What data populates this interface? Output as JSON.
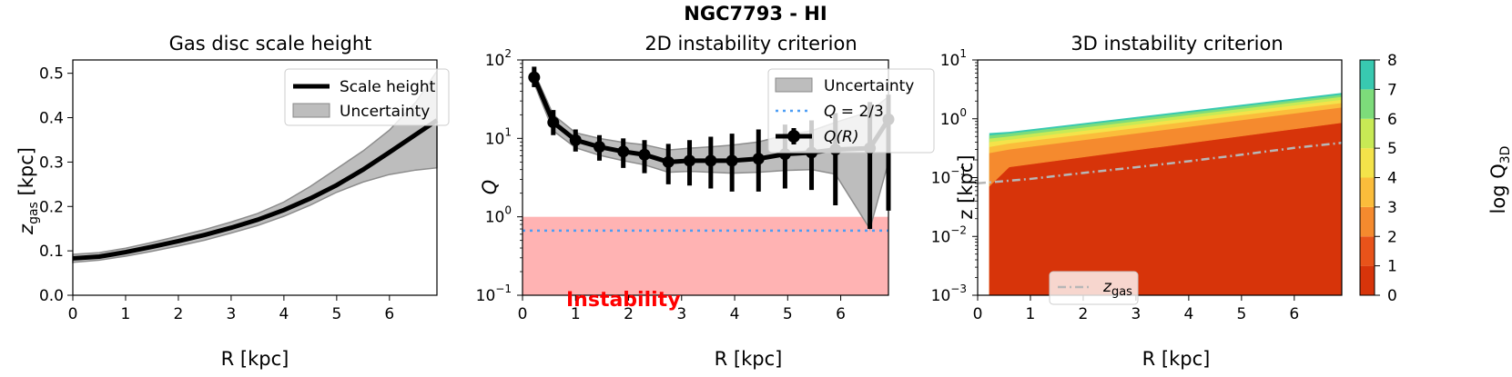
{
  "suptitle": "NGC7793 - HI",
  "chart_data": [
    {
      "type": "line",
      "title": "Gas disc scale height",
      "xlabel": "R [kpc]",
      "ylabel_main": "z",
      "ylabel_sub": "gas",
      "ylabel_unit": " [kpc]",
      "xlim": [
        0,
        6.9
      ],
      "ylim": [
        0,
        0.53
      ],
      "xticks": [
        "0",
        "1",
        "2",
        "3",
        "4",
        "5",
        "6"
      ],
      "xtick_values": [
        0,
        1,
        2,
        3,
        4,
        5,
        6
      ],
      "yticks": [
        "0.0",
        "0.1",
        "0.2",
        "0.3",
        "0.4",
        "0.5"
      ],
      "ytick_values": [
        0,
        0.1,
        0.2,
        0.3,
        0.4,
        0.5
      ],
      "legend": [
        "Scale height",
        "Uncertainty"
      ],
      "series": [
        {
          "name": "Scale height",
          "x": [
            0,
            0.5,
            1,
            1.5,
            2,
            2.5,
            3,
            3.5,
            4,
            4.5,
            5,
            5.5,
            6,
            6.5,
            6.9
          ],
          "values": [
            0.083,
            0.087,
            0.097,
            0.109,
            0.122,
            0.136,
            0.152,
            0.17,
            0.192,
            0.218,
            0.248,
            0.283,
            0.322,
            0.362,
            0.394
          ]
        },
        {
          "name": "Uncertainty",
          "x": [
            0,
            0.5,
            1,
            1.5,
            2,
            2.5,
            3,
            3.5,
            4,
            4.5,
            5,
            5.5,
            6,
            6.5,
            6.9
          ],
          "lower": [
            0.074,
            0.079,
            0.088,
            0.099,
            0.111,
            0.124,
            0.14,
            0.157,
            0.178,
            0.203,
            0.232,
            0.255,
            0.272,
            0.282,
            0.287
          ],
          "upper": [
            0.092,
            0.096,
            0.106,
            0.119,
            0.133,
            0.148,
            0.165,
            0.184,
            0.21,
            0.245,
            0.285,
            0.325,
            0.372,
            0.435,
            0.505
          ]
        }
      ]
    },
    {
      "type": "line",
      "title": "2D instability criterion",
      "xlabel": "R [kpc]",
      "ylabel": "Q",
      "yscale": "log",
      "xlim": [
        0,
        6.9
      ],
      "ylim_exp": [
        -1,
        2
      ],
      "xticks": [
        "0",
        "1",
        "2",
        "3",
        "4",
        "5",
        "6"
      ],
      "xtick_values": [
        0,
        1,
        2,
        3,
        4,
        5,
        6
      ],
      "yticks_base": [
        "10",
        "10",
        "10",
        "10"
      ],
      "yticks_exp": [
        "−1",
        "0",
        "1",
        "2"
      ],
      "ytick_exps": [
        -1,
        0,
        1,
        2
      ],
      "legend": [
        "Uncertainty",
        "Q = 2/3",
        "Q(R)"
      ],
      "legend_q_lhs": "Q",
      "legend_q_rhs": " = 2/3",
      "legend_qr": "Q",
      "legend_qr_arg": "(R)",
      "annotation": "Instability",
      "instability_region": [
        0.1,
        1.0
      ],
      "hline": 0.6667,
      "series": [
        {
          "name": "Q(R)",
          "x": [
            0.22,
            0.58,
            1.0,
            1.45,
            1.9,
            2.3,
            2.75,
            3.15,
            3.55,
            3.95,
            4.45,
            4.95,
            5.45,
            5.9,
            6.55,
            6.9
          ],
          "values": [
            60,
            16,
            9.5,
            7.8,
            6.8,
            6.2,
            5.0,
            5.2,
            5.2,
            5.2,
            5.5,
            6.3,
            6.6,
            7.2,
            7.5,
            17.5
          ],
          "err_low": [
            45,
            11,
            6.8,
            5.2,
            4.2,
            3.6,
            2.6,
            2.5,
            2.3,
            2.1,
            2.1,
            2.3,
            2.2,
            1.4,
            0.7,
            1.2
          ],
          "err_high": [
            82,
            23,
            13,
            11,
            10,
            9.5,
            8.5,
            9.5,
            10.5,
            11.5,
            13,
            15,
            17,
            21,
            29,
            36
          ]
        },
        {
          "name": "Uncertainty",
          "x": [
            0.22,
            0.58,
            1.0,
            1.45,
            1.9,
            2.3,
            2.75,
            3.15,
            3.55,
            3.95,
            4.45,
            4.95,
            5.45,
            5.9,
            6.55,
            6.9
          ],
          "lower": [
            50,
            12.5,
            7.6,
            6.1,
            5.2,
            4.6,
            3.7,
            3.8,
            3.7,
            3.6,
            3.7,
            3.9,
            4.0,
            3.5,
            0.7,
            5.0
          ],
          "upper": [
            70,
            20,
            11.8,
            10,
            8.9,
            8.3,
            7.1,
            7.5,
            7.8,
            8.2,
            9.0,
            11,
            12.5,
            16,
            22,
            34
          ]
        }
      ]
    },
    {
      "type": "heatmap",
      "title": "3D instability criterion",
      "xlabel": "R [kpc]",
      "ylabel": "z [kpc]",
      "yscale": "log",
      "xlim": [
        0,
        6.9
      ],
      "ylim_exp": [
        -3,
        1
      ],
      "xticks": [
        "0",
        "1",
        "2",
        "3",
        "4",
        "5",
        "6"
      ],
      "xtick_values": [
        0,
        1,
        2,
        3,
        4,
        5,
        6
      ],
      "yticks_base": [
        "10",
        "10",
        "10",
        "10",
        "10"
      ],
      "yticks_exp": [
        "−3",
        "−2",
        "−1",
        "0",
        "1"
      ],
      "ytick_exps": [
        -3,
        -2,
        -1,
        0,
        1
      ],
      "legend_main": "z",
      "legend_sub": "gas",
      "colorbar_label_main": "log Q",
      "colorbar_label_sub": "3D",
      "colorbar_ticks": [
        "0",
        "1",
        "2",
        "3",
        "4",
        "5",
        "6",
        "7",
        "8"
      ],
      "colorbar_levels": [
        0,
        1,
        2,
        3,
        4,
        5,
        6,
        7,
        8
      ],
      "colorbar_colors": [
        "#d7340a",
        "#e8531a",
        "#f58a2e",
        "#fbbd3b",
        "#f4e34a",
        "#c8ea55",
        "#7ddc7a",
        "#38c9b0",
        "#1f9cf0"
      ],
      "contour_R": [
        0.22,
        0.6,
        6.9
      ],
      "contour_boundaries": [
        [
          0.07,
          0.15,
          0.85
        ],
        [
          0.26,
          0.3,
          1.55
        ],
        [
          0.33,
          0.38,
          1.85
        ],
        [
          0.4,
          0.44,
          2.1
        ],
        [
          0.46,
          0.5,
          2.35
        ],
        [
          0.52,
          0.56,
          2.55
        ],
        [
          0.57,
          0.6,
          2.75
        ]
      ],
      "zgas_line": {
        "x": [
          0,
          1,
          2,
          3,
          4,
          5,
          6,
          6.9
        ],
        "values": [
          0.08,
          0.095,
          0.12,
          0.15,
          0.19,
          0.245,
          0.32,
          0.39
        ]
      }
    }
  ]
}
